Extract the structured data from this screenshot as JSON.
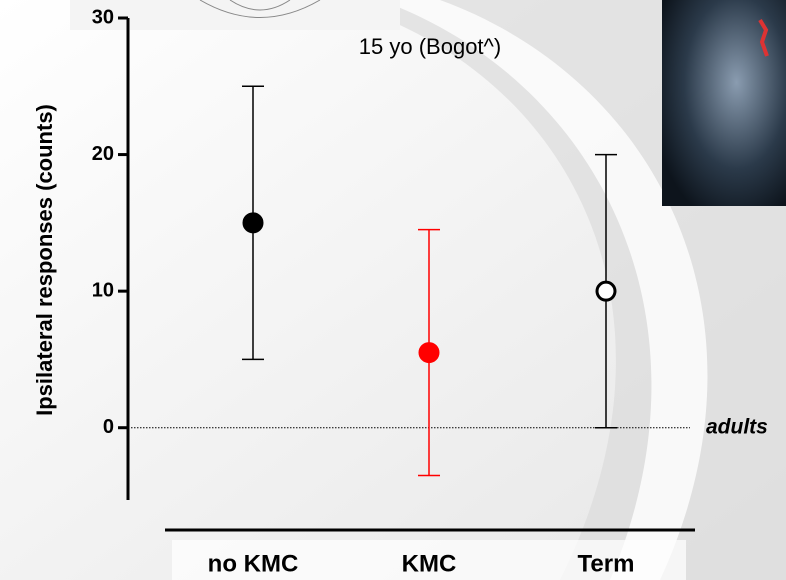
{
  "chart_data": {
    "type": "errorbar",
    "subtitle": "15 yo (Bogot^)",
    "y_label": "Ipsilateral responses (counts)",
    "categories": [
      "no KMC",
      "KMC",
      "Term"
    ],
    "values": [
      15,
      5.5,
      10
    ],
    "errors": [
      10,
      9,
      10
    ],
    "colors": [
      "#000000",
      "#ff0000",
      "#000000"
    ],
    "marker_fill": [
      "#000000",
      "#ff0000",
      "#ffffff"
    ],
    "ylim": [
      -5,
      30
    ],
    "yticks": [
      0,
      10,
      20,
      30
    ],
    "reference_line": {
      "value": 0,
      "label": "adults"
    }
  }
}
